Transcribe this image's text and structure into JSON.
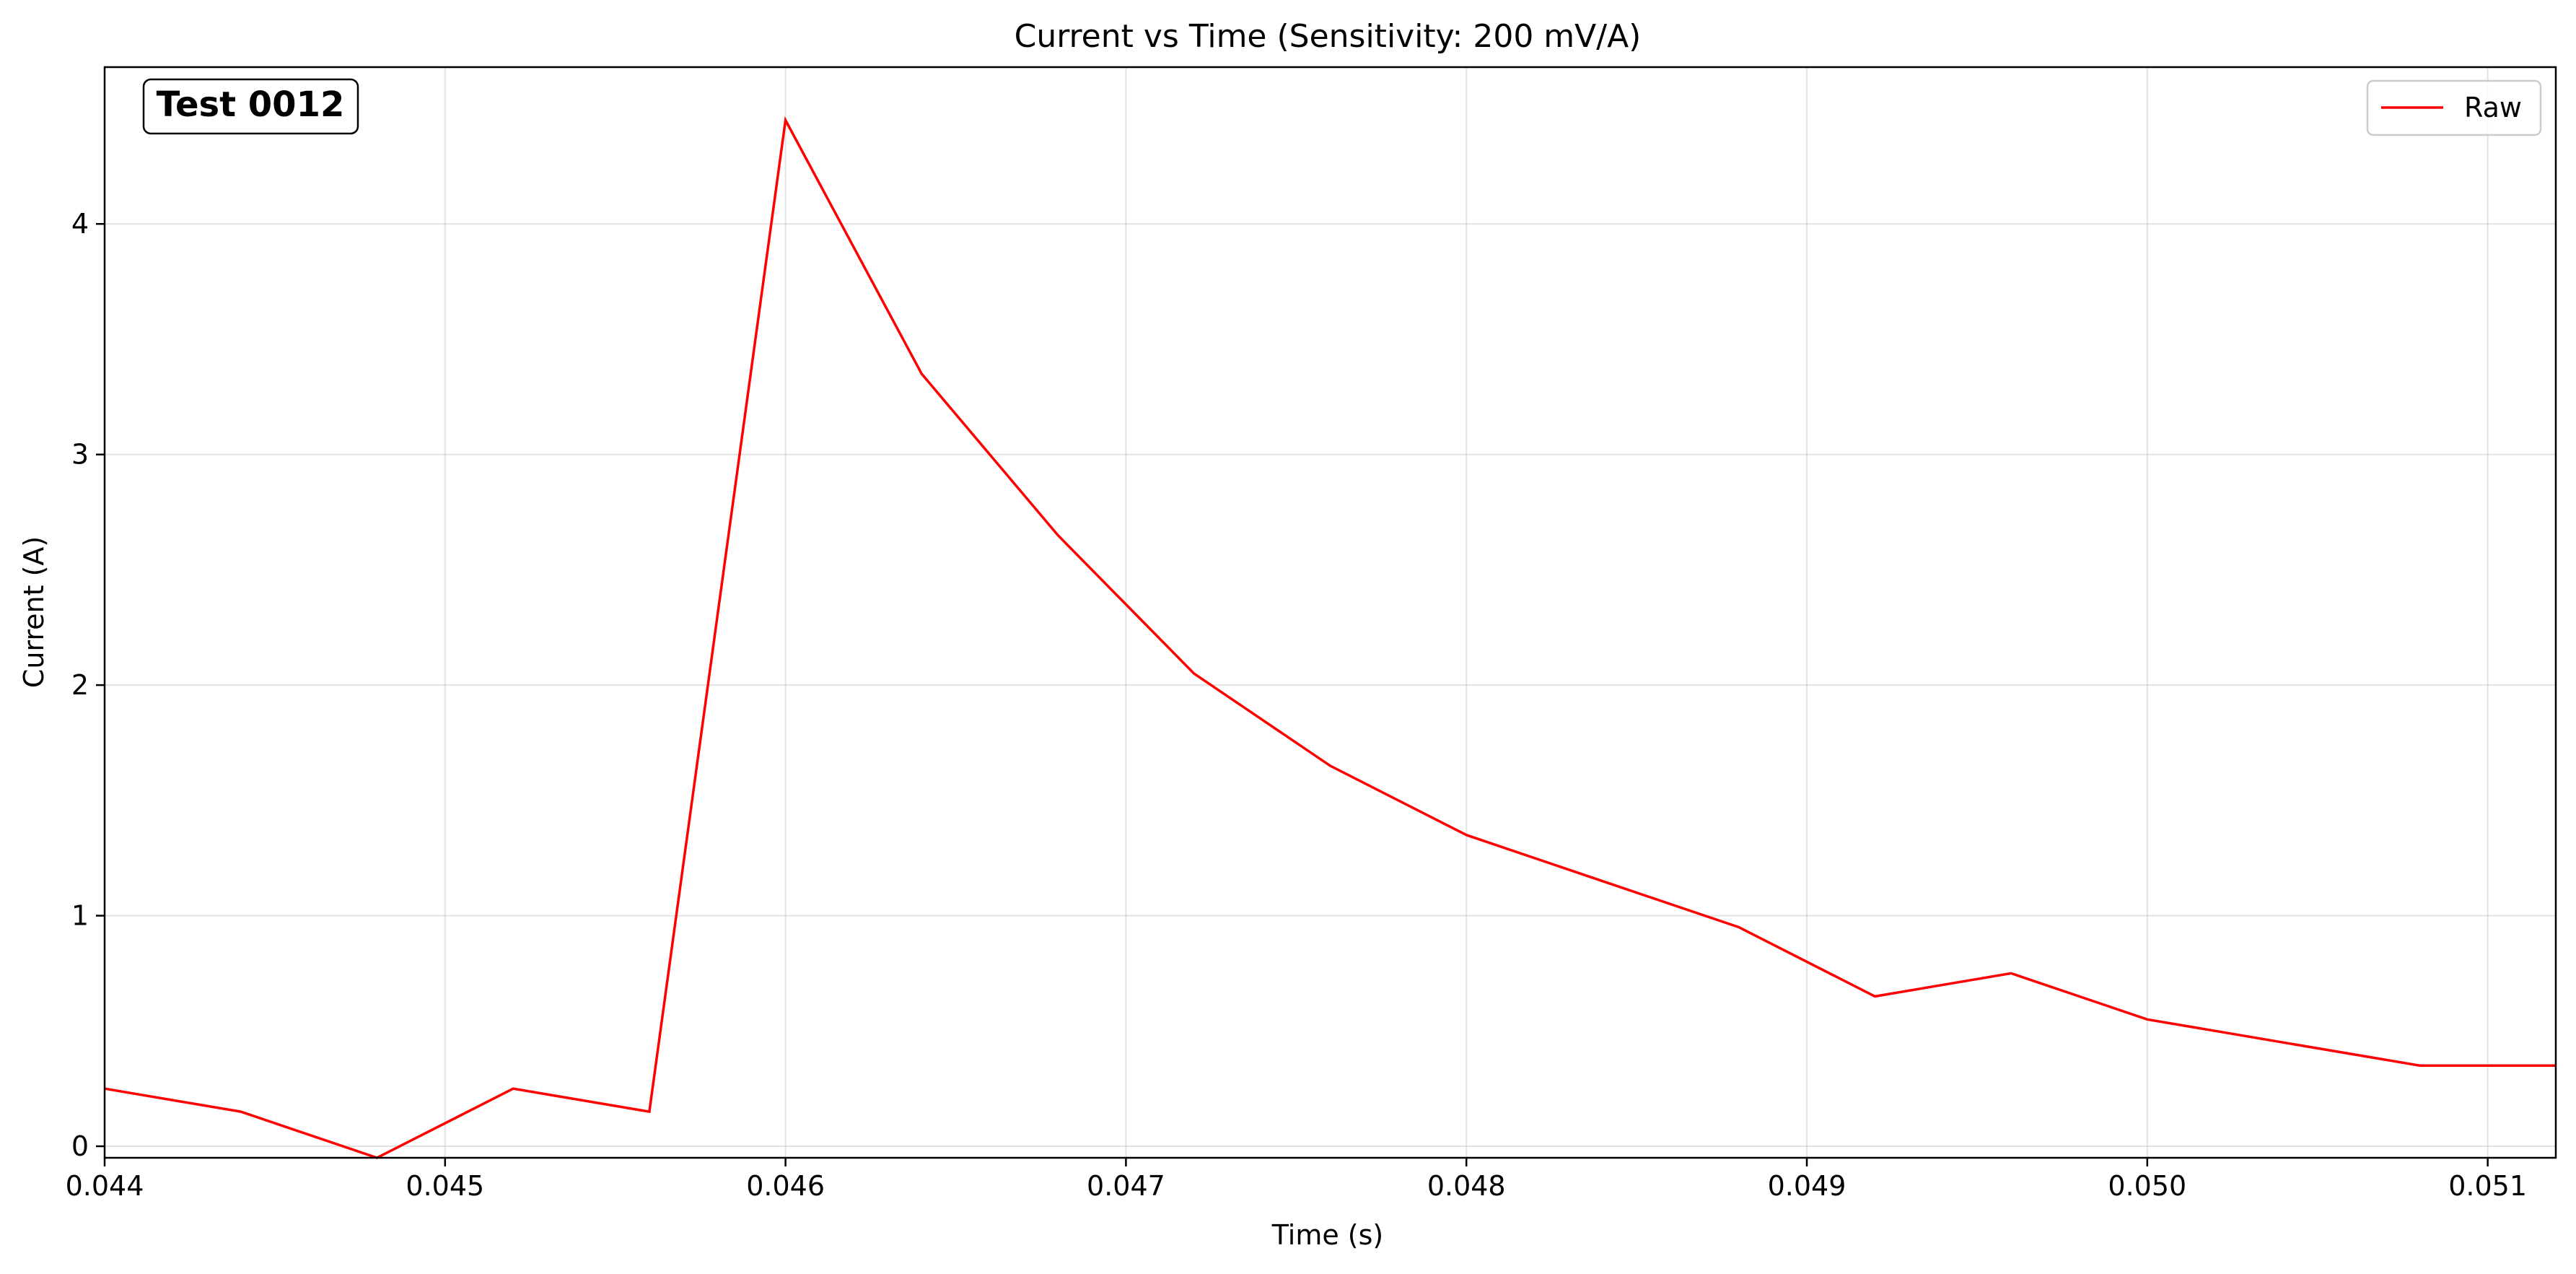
{
  "chart_data": {
    "type": "line",
    "title": "Current vs Time (Sensitivity: 200 mV/A)",
    "xlabel": "Time (s)",
    "ylabel": "Current (A)",
    "xlim": [
      0.044,
      0.0512
    ],
    "ylim": [
      -0.05,
      4.68
    ],
    "x_ticks": [
      0.044,
      0.045,
      0.046,
      0.047,
      0.048,
      0.049,
      0.05,
      0.051
    ],
    "x_tick_labels": [
      "0.044",
      "0.045",
      "0.046",
      "0.047",
      "0.048",
      "0.049",
      "0.050",
      "0.051"
    ],
    "y_ticks": [
      0,
      1,
      2,
      3,
      4
    ],
    "y_tick_labels": [
      "0",
      "1",
      "2",
      "3",
      "4"
    ],
    "grid": true,
    "legend_position": "top-right",
    "annotation": "Test 0012",
    "line_color": "#ff0000",
    "series": [
      {
        "name": "Raw",
        "x": [
          0.044,
          0.0444,
          0.0448,
          0.0452,
          0.0456,
          0.046,
          0.0464,
          0.0468,
          0.0472,
          0.0476,
          0.048,
          0.0484,
          0.0488,
          0.0492,
          0.0496,
          0.05,
          0.0504,
          0.0508,
          0.0512
        ],
        "y": [
          0.25,
          0.15,
          -0.05,
          0.25,
          0.15,
          4.45,
          3.35,
          2.65,
          2.05,
          1.65,
          1.35,
          1.15,
          0.95,
          0.65,
          0.75,
          0.55,
          0.45,
          0.35,
          0.35
        ]
      }
    ]
  }
}
